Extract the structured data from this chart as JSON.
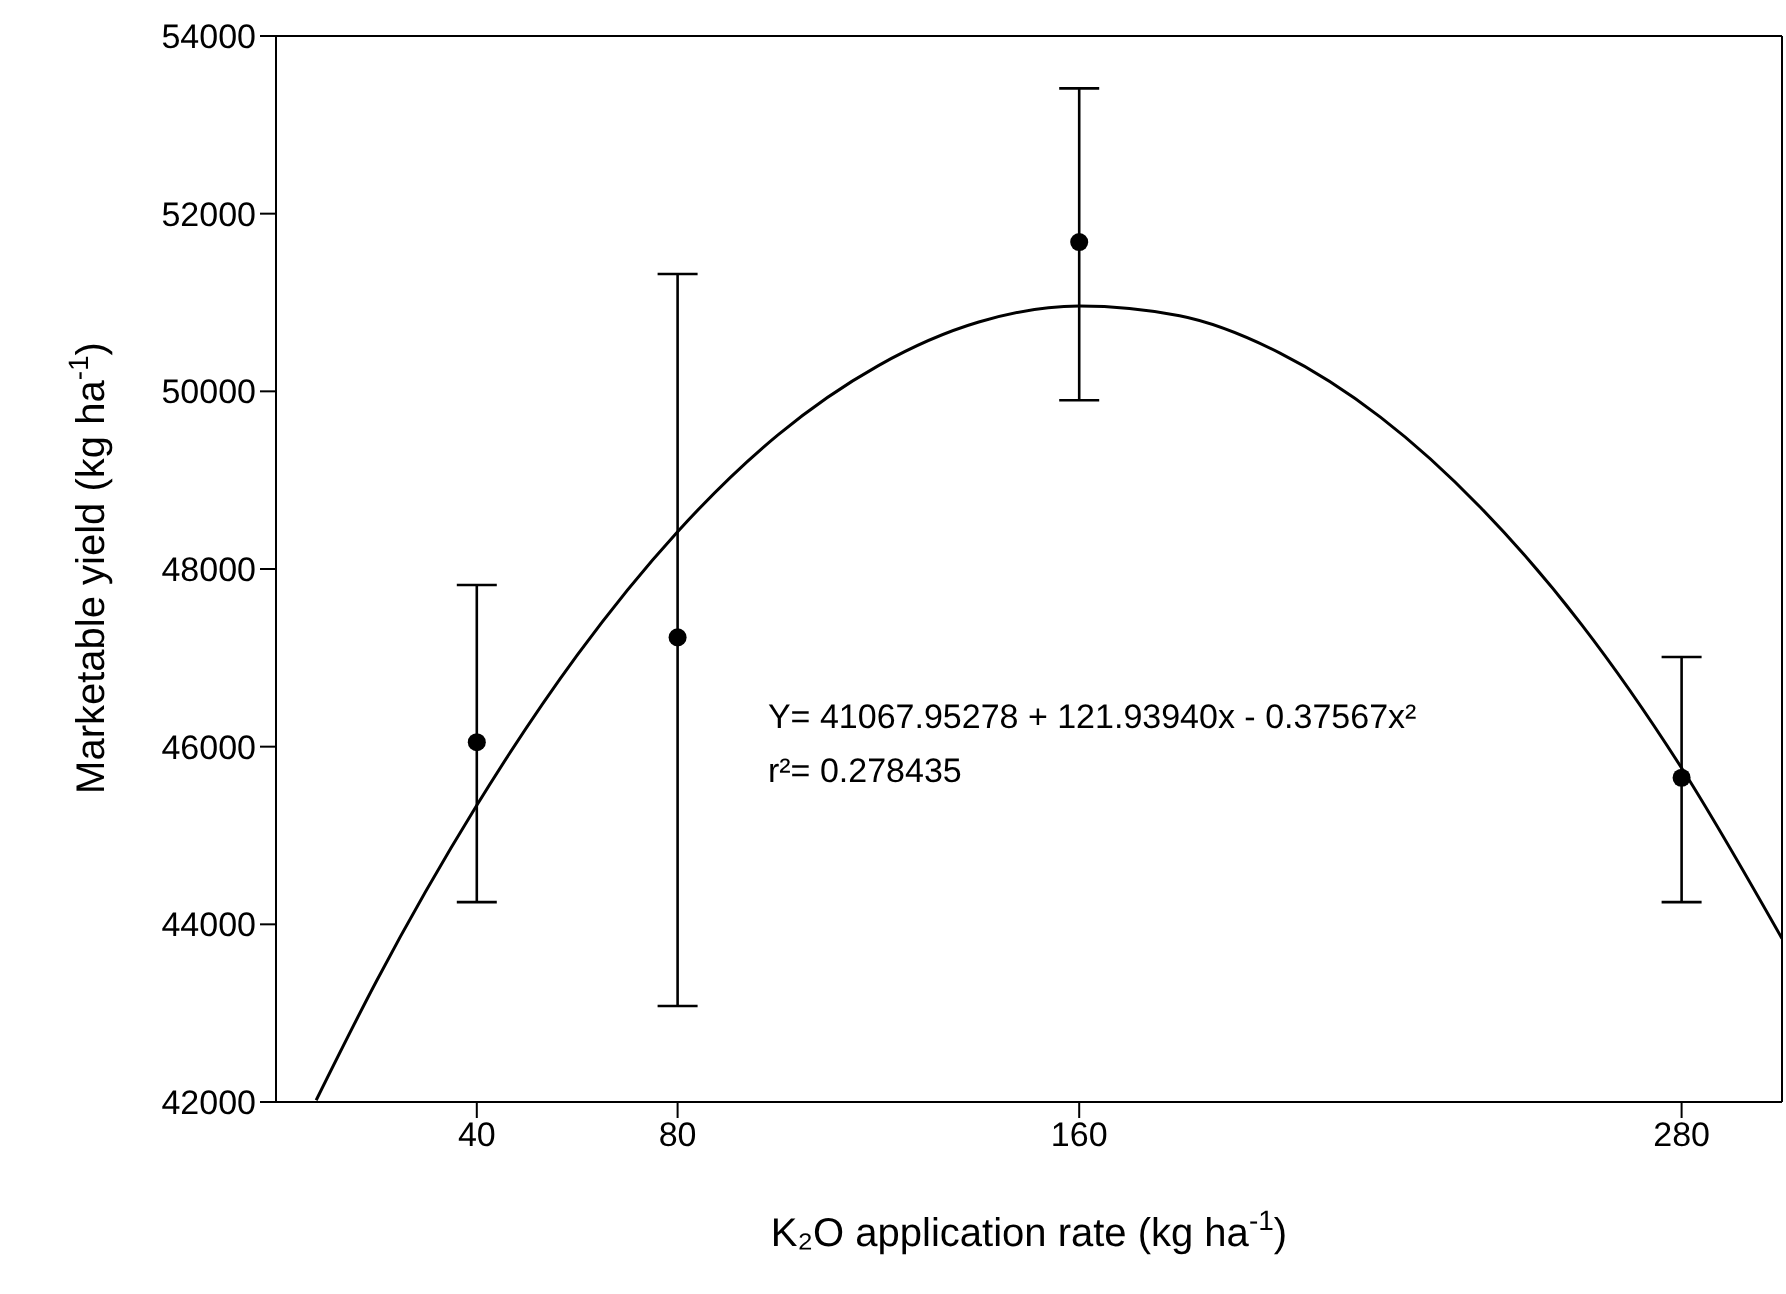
{
  "chart_data": {
    "type": "scatter",
    "xlabel": "K₂O application rate (kg ha$^{-1}$)",
    "ylabel": "Marketable yield (kg ha$^{-1}$)",
    "annotations": [
      "Y= 41067.95278 + 121.93940x - 0.37567x²",
      "r²= 0.278435"
    ],
    "x": [
      40,
      80,
      160,
      280
    ],
    "series": [
      {
        "color": "#000000",
        "marker": "circle",
        "values": [
          46050,
          47230,
          51680,
          45650
        ],
        "errors": [
          [
            44250,
            47820
          ],
          [
            43080,
            51320
          ],
          [
            49900,
            53410
          ],
          [
            44250,
            47010
          ]
        ]
      },
      {
        "type": "line",
        "color": "#000000",
        "marker": "none",
        "x": [
          8,
          20,
          40,
          60,
          80,
          100,
          120,
          140,
          160,
          180,
          200,
          220,
          240,
          260,
          280,
          300
        ],
        "values": [
          42020,
          43360,
          45340,
          47030,
          48420,
          49510,
          50290,
          50780,
          50960,
          50850,
          50430,
          49710,
          48690,
          47380,
          45760,
          43840
        ]
      }
    ],
    "xlim": [
      0,
      300
    ],
    "xticks": [
      40,
      80,
      160,
      280
    ],
    "ylim": [
      42000,
      54000
    ],
    "yticks": [
      42000,
      44000,
      46000,
      48000,
      50000,
      52000,
      54000
    ],
    "grid": false,
    "legend": false
  }
}
